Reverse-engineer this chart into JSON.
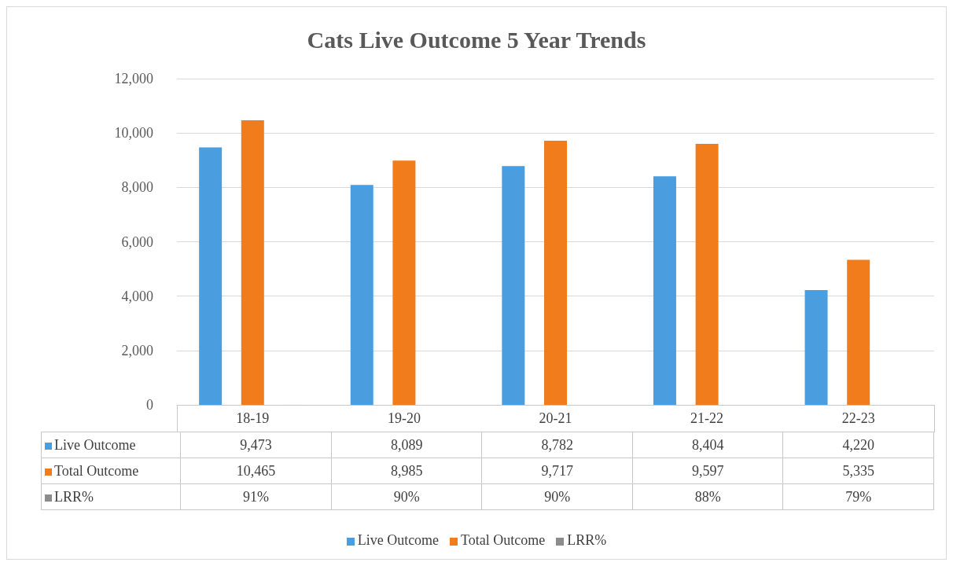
{
  "chart_data": {
    "type": "bar",
    "title": "Cats Live Outcome 5 Year Trends",
    "categories": [
      "18-19",
      "19-20",
      "20-21",
      "21-22",
      "22-23"
    ],
    "series": [
      {
        "name": "Live Outcome",
        "color": "#4a9ee0",
        "values": [
          9473,
          8089,
          8782,
          8404,
          4220
        ],
        "value_labels": [
          "9,473",
          "8,089",
          "8,782",
          "8,404",
          "4,220"
        ]
      },
      {
        "name": "Total Outcome",
        "color": "#f07c1c",
        "values": [
          10465,
          8985,
          9717,
          9597,
          5335
        ],
        "value_labels": [
          "10,465",
          "8,985",
          "9,717",
          "9,597",
          "5,335"
        ]
      },
      {
        "name": "LRR%",
        "color": "#8c8c8c",
        "values": [
          0.91,
          0.9,
          0.9,
          0.88,
          0.79
        ],
        "value_labels": [
          "91%",
          "90%",
          "90%",
          "88%",
          "79%"
        ]
      }
    ],
    "ylim": [
      0,
      12000
    ],
    "yticks": [
      {
        "value": 0,
        "label": "0"
      },
      {
        "value": 2000,
        "label": "2,000"
      },
      {
        "value": 4000,
        "label": "4,000"
      },
      {
        "value": 6000,
        "label": "6,000"
      },
      {
        "value": 8000,
        "label": "8,000"
      },
      {
        "value": 10000,
        "label": "10,000"
      },
      {
        "value": 12000,
        "label": "12,000"
      }
    ],
    "grid": "y",
    "legend": "bottom"
  }
}
